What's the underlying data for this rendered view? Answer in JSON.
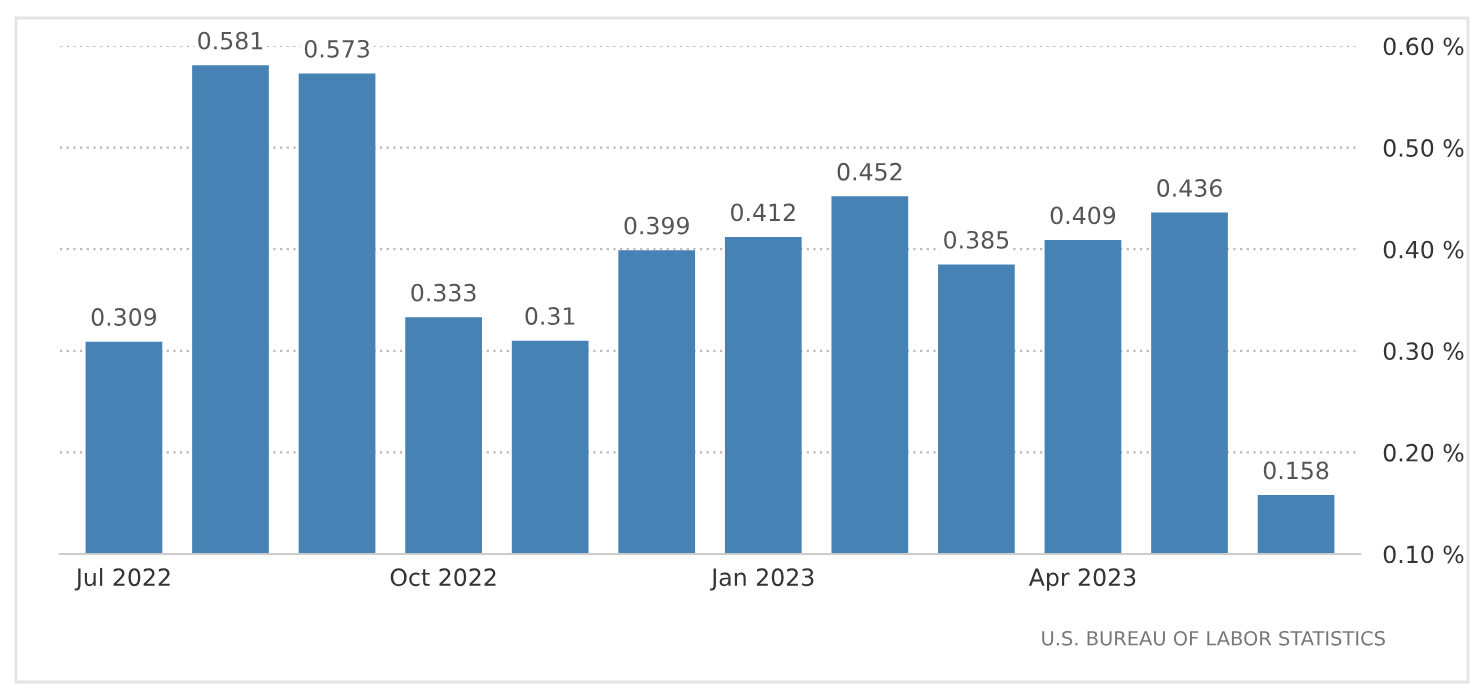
{
  "chart_data": {
    "type": "bar",
    "categories": [
      "Jul 2022",
      null,
      null,
      "Oct 2022",
      null,
      null,
      "Jan 2023",
      null,
      null,
      "Apr 2023",
      null,
      null
    ],
    "values": [
      0.309,
      0.581,
      0.573,
      0.333,
      0.31,
      0.399,
      0.412,
      0.452,
      0.385,
      0.409,
      0.436,
      0.158
    ],
    "value_labels": [
      "0.309",
      "0.581",
      "0.573",
      "0.333",
      "0.31",
      "0.399",
      "0.412",
      "0.452",
      "0.385",
      "0.409",
      "0.436",
      "0.158"
    ],
    "color": "#4682b4",
    "ylim": [
      0.1,
      0.6
    ],
    "yticks": [
      {
        "value": 0.1,
        "label": "0.10 %"
      },
      {
        "value": 0.2,
        "label": "0.20 %"
      },
      {
        "value": 0.3,
        "label": "0.30 %"
      },
      {
        "value": 0.4,
        "label": "0.40 %"
      },
      {
        "value": 0.5,
        "label": "0.50 %"
      },
      {
        "value": 0.6,
        "label": "0.60 %"
      }
    ],
    "grid": "y",
    "legend": false,
    "annotations": [
      "U.S. BUREAU OF LABOR STATISTICS"
    ]
  }
}
